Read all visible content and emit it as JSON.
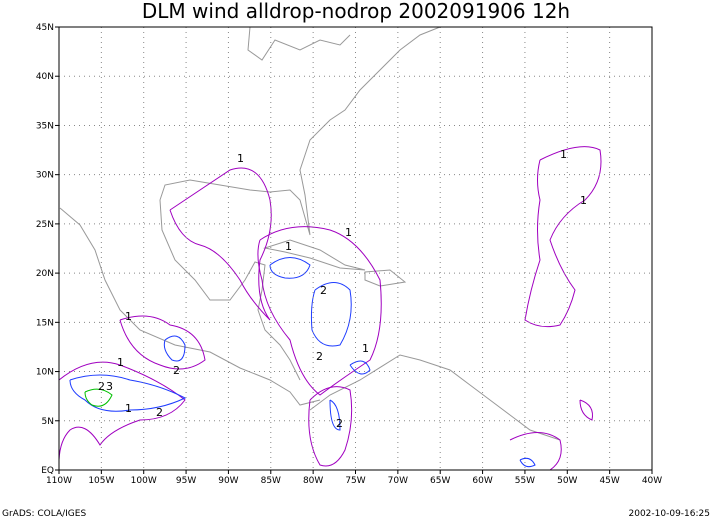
{
  "map": {
    "title": "DLM wind alldrop-nodrop 2002091906 12h",
    "xlim": [
      -110,
      -40
    ],
    "ylim": [
      0,
      45
    ],
    "xticks": [
      {
        "value": -110,
        "label": "110W"
      },
      {
        "value": -105,
        "label": "105W"
      },
      {
        "value": -100,
        "label": "100W"
      },
      {
        "value": -95,
        "label": "95W"
      },
      {
        "value": -90,
        "label": "90W"
      },
      {
        "value": -85,
        "label": "85W"
      },
      {
        "value": -80,
        "label": "80W"
      },
      {
        "value": -75,
        "label": "75W"
      },
      {
        "value": -70,
        "label": "70W"
      },
      {
        "value": -65,
        "label": "65W"
      },
      {
        "value": -60,
        "label": "60W"
      },
      {
        "value": -55,
        "label": "55W"
      },
      {
        "value": -50,
        "label": "50W"
      },
      {
        "value": -45,
        "label": "45W"
      },
      {
        "value": -40,
        "label": "40W"
      }
    ],
    "yticks": [
      {
        "value": 0,
        "label": "EQ"
      },
      {
        "value": 5,
        "label": "5N"
      },
      {
        "value": 10,
        "label": "10N"
      },
      {
        "value": 15,
        "label": "15N"
      },
      {
        "value": 20,
        "label": "20N"
      },
      {
        "value": 25,
        "label": "25N"
      },
      {
        "value": 30,
        "label": "30N"
      },
      {
        "value": 35,
        "label": "35N"
      },
      {
        "value": 40,
        "label": "40N"
      },
      {
        "value": 45,
        "label": "45N"
      }
    ],
    "contour_labels": [
      "1",
      "1",
      "1",
      "1",
      "2",
      "2",
      "3",
      "2",
      "1",
      "2",
      "2",
      "1",
      "1",
      "2",
      "1",
      "1"
    ],
    "footer_left": "GrADS: COLA/IGES",
    "footer_right": "2002-10-09-16:25"
  }
}
